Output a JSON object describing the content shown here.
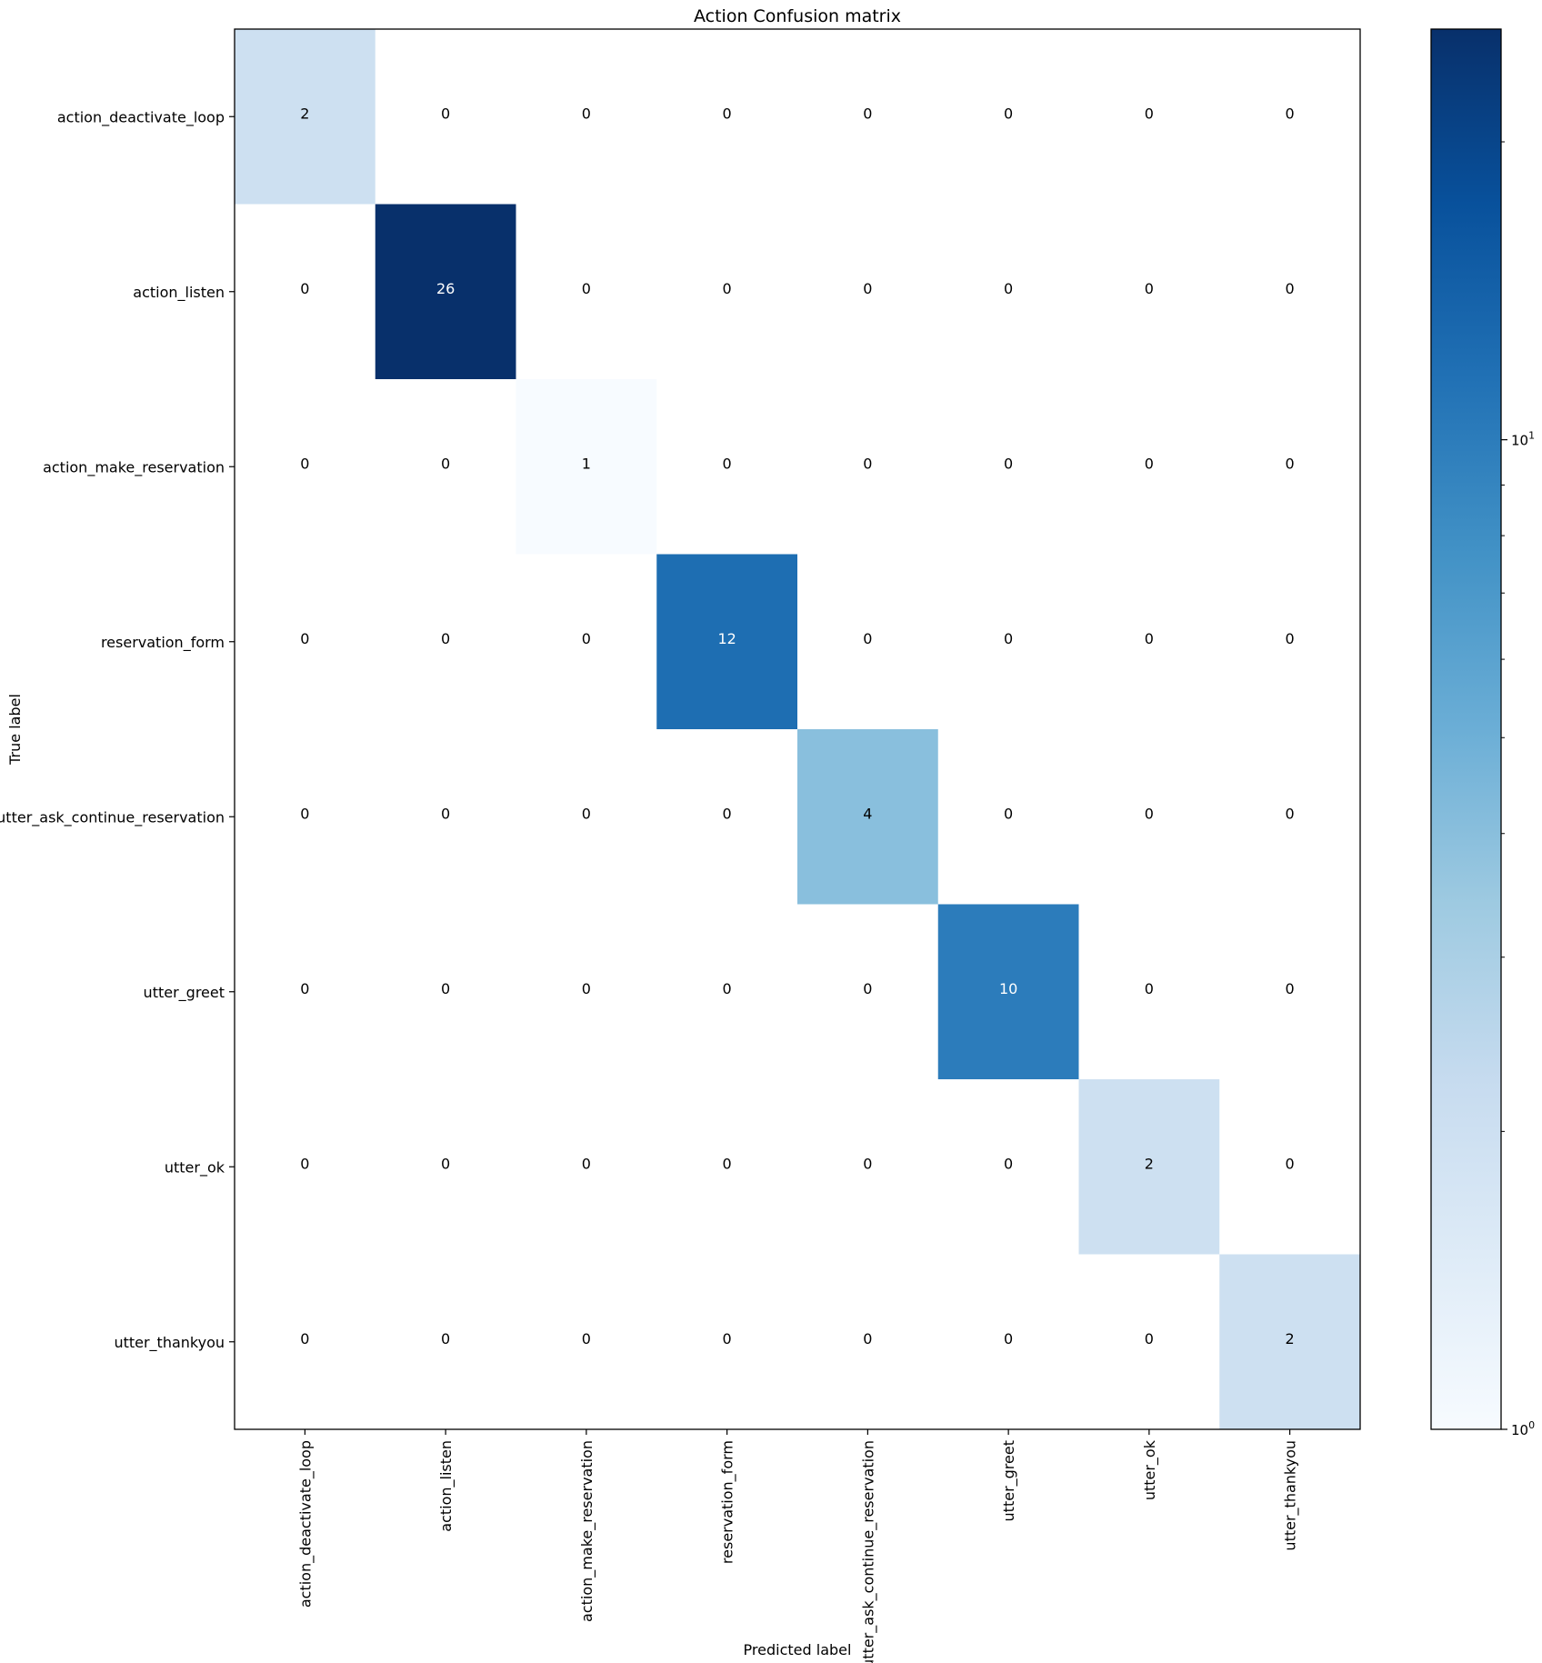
{
  "chart_data": {
    "type": "heatmap",
    "title": "Action Confusion matrix",
    "xlabel": "Predicted label",
    "ylabel": "True label",
    "x_categories": [
      "action_deactivate_loop",
      "action_listen",
      "action_make_reservation",
      "reservation_form",
      "utter_ask_continue_reservation",
      "utter_greet",
      "utter_ok",
      "utter_thankyou"
    ],
    "y_categories": [
      "action_deactivate_loop",
      "action_listen",
      "action_make_reservation",
      "reservation_form",
      "utter_ask_continue_reservation",
      "utter_greet",
      "utter_ok",
      "utter_thankyou"
    ],
    "values": [
      [
        2,
        0,
        0,
        0,
        0,
        0,
        0,
        0
      ],
      [
        0,
        26,
        0,
        0,
        0,
        0,
        0,
        0
      ],
      [
        0,
        0,
        1,
        0,
        0,
        0,
        0,
        0
      ],
      [
        0,
        0,
        0,
        12,
        0,
        0,
        0,
        0
      ],
      [
        0,
        0,
        0,
        0,
        4,
        0,
        0,
        0
      ],
      [
        0,
        0,
        0,
        0,
        0,
        10,
        0,
        0
      ],
      [
        0,
        0,
        0,
        0,
        0,
        0,
        2,
        0
      ],
      [
        0,
        0,
        0,
        0,
        0,
        0,
        0,
        2
      ]
    ],
    "colormap": "Blues",
    "color_scale": "log",
    "colorbar": {
      "range": [
        1,
        26
      ],
      "major_tick_labels": [
        {
          "base": "10",
          "exp": "0",
          "value": 1
        },
        {
          "base": "10",
          "exp": "1",
          "value": 10
        }
      ],
      "minor_tick_values": [
        2,
        3,
        4,
        5,
        6,
        7,
        8,
        9,
        20
      ]
    },
    "grid": false,
    "legend": "colorbar-right",
    "colors": {
      "zero_cell": "#ffffff",
      "dark_text": "#000000",
      "light_text": "#ffffff",
      "colormap_stops": [
        "#f7fbff",
        "#deebf7",
        "#c6dbef",
        "#9ecae1",
        "#6baed6",
        "#4292c6",
        "#2171b5",
        "#08519c",
        "#08306b"
      ]
    }
  }
}
